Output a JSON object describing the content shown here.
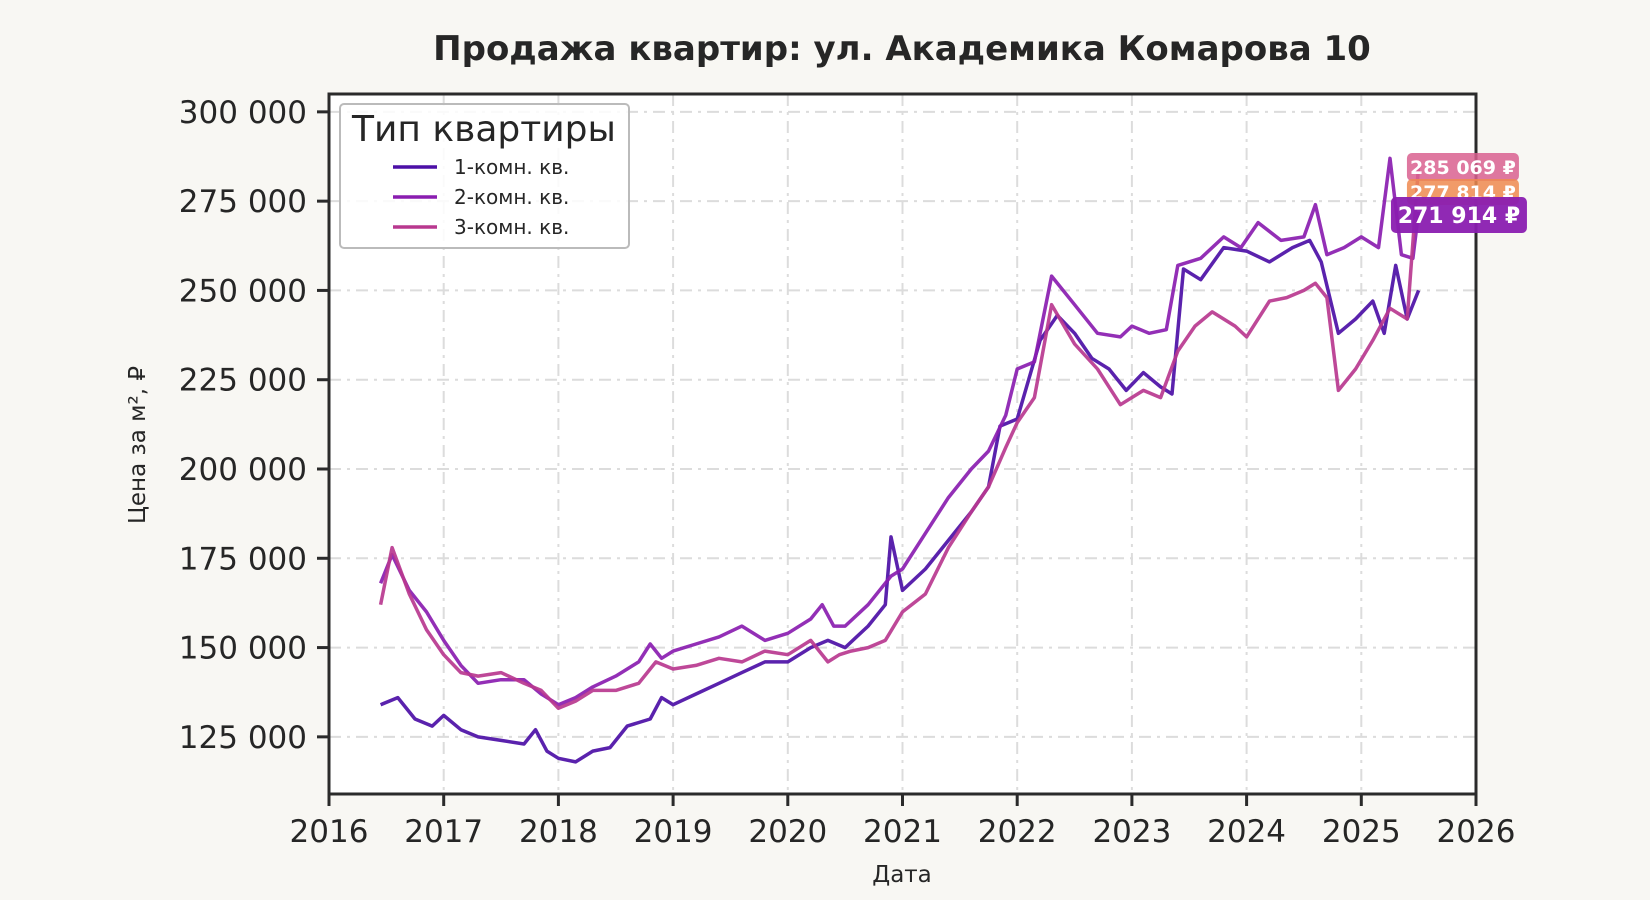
{
  "chart_data": {
    "type": "line",
    "title": "Продажа квартир: ул. Академика Комарова 10",
    "xlabel": "Дата",
    "ylabel": "Цена за м², ₽",
    "xlim": [
      2016.0,
      2026.0
    ],
    "ylim": [
      109000,
      305000
    ],
    "x_ticks": [
      "2016",
      "2017",
      "2018",
      "2019",
      "2020",
      "2021",
      "2022",
      "2023",
      "2024",
      "2025",
      "2026"
    ],
    "y_ticks": [
      "125 000",
      "150 000",
      "175 000",
      "200 000",
      "225 000",
      "250 000",
      "275 000",
      "300 000"
    ],
    "y_tick_values": [
      125000,
      150000,
      175000,
      200000,
      225000,
      250000,
      275000,
      300000
    ],
    "grid": true,
    "legend": {
      "title": "Тип квартиры",
      "position": "top-left"
    },
    "series": [
      {
        "name": "1-комн. кв.",
        "color": "#4c0fa6",
        "x": [
          2016.45,
          2016.6,
          2016.75,
          2016.9,
          2017.0,
          2017.15,
          2017.3,
          2017.5,
          2017.7,
          2017.8,
          2017.9,
          2018.0,
          2018.15,
          2018.3,
          2018.45,
          2018.6,
          2018.8,
          2018.9,
          2019.0,
          2019.2,
          2019.4,
          2019.6,
          2019.8,
          2020.0,
          2020.2,
          2020.35,
          2020.5,
          2020.7,
          2020.85,
          2020.9,
          2021.0,
          2021.2,
          2021.4,
          2021.6,
          2021.75,
          2021.85,
          2022.0,
          2022.2,
          2022.35,
          2022.5,
          2022.65,
          2022.8,
          2022.95,
          2023.1,
          2023.25,
          2023.35,
          2023.45,
          2023.6,
          2023.8,
          2024.0,
          2024.2,
          2024.4,
          2024.55,
          2024.65,
          2024.8,
          2024.95,
          2025.1,
          2025.2,
          2025.3,
          2025.4,
          2025.5
        ],
        "values": [
          134000,
          136000,
          130000,
          128000,
          131000,
          127000,
          125000,
          124000,
          123000,
          127000,
          121000,
          119000,
          118000,
          121000,
          122000,
          128000,
          130000,
          136000,
          134000,
          137000,
          140000,
          143000,
          146000,
          146000,
          150000,
          152000,
          150000,
          156000,
          162000,
          181000,
          166000,
          172000,
          180000,
          188000,
          195000,
          212000,
          214000,
          236000,
          243000,
          238000,
          231000,
          228000,
          222000,
          227000,
          223000,
          221000,
          256000,
          253000,
          262000,
          261000,
          258000,
          262000,
          264000,
          258000,
          238000,
          242000,
          247000,
          238000,
          257000,
          242000,
          250000
        ]
      },
      {
        "name": "2-комн. кв.",
        "color": "#8a1db0",
        "x": [
          2016.45,
          2016.55,
          2016.7,
          2016.85,
          2017.0,
          2017.15,
          2017.3,
          2017.5,
          2017.7,
          2017.85,
          2018.0,
          2018.15,
          2018.3,
          2018.5,
          2018.7,
          2018.8,
          2018.9,
          2019.0,
          2019.2,
          2019.4,
          2019.6,
          2019.8,
          2020.0,
          2020.2,
          2020.3,
          2020.4,
          2020.5,
          2020.7,
          2020.9,
          2021.0,
          2021.2,
          2021.4,
          2021.6,
          2021.75,
          2021.9,
          2022.0,
          2022.15,
          2022.3,
          2022.5,
          2022.7,
          2022.9,
          2023.0,
          2023.15,
          2023.3,
          2023.4,
          2023.6,
          2023.8,
          2023.95,
          2024.1,
          2024.3,
          2024.5,
          2024.6,
          2024.7,
          2024.85,
          2025.0,
          2025.15,
          2025.25,
          2025.35,
          2025.45,
          2025.5
        ],
        "values": [
          168000,
          176000,
          166000,
          160000,
          152000,
          145000,
          140000,
          141000,
          141000,
          137000,
          134000,
          136000,
          139000,
          142000,
          146000,
          151000,
          147000,
          149000,
          151000,
          153000,
          156000,
          152000,
          154000,
          158000,
          162000,
          156000,
          156000,
          162000,
          170000,
          172000,
          182000,
          192000,
          200000,
          205000,
          215000,
          228000,
          230000,
          254000,
          246000,
          238000,
          237000,
          240000,
          238000,
          239000,
          257000,
          259000,
          265000,
          262000,
          269000,
          264000,
          265000,
          274000,
          260000,
          262000,
          265000,
          262000,
          287000,
          260000,
          259000,
          272000
        ]
      },
      {
        "name": "3-комн. кв.",
        "color": "#b8388f",
        "x": [
          2016.45,
          2016.55,
          2016.7,
          2016.85,
          2017.0,
          2017.15,
          2017.3,
          2017.5,
          2017.7,
          2017.85,
          2018.0,
          2018.15,
          2018.3,
          2018.5,
          2018.7,
          2018.85,
          2019.0,
          2019.2,
          2019.4,
          2019.6,
          2019.8,
          2020.0,
          2020.2,
          2020.35,
          2020.45,
          2020.55,
          2020.7,
          2020.85,
          2021.0,
          2021.2,
          2021.4,
          2021.6,
          2021.75,
          2021.9,
          2022.0,
          2022.15,
          2022.3,
          2022.5,
          2022.7,
          2022.9,
          2023.1,
          2023.25,
          2023.4,
          2023.55,
          2023.7,
          2023.9,
          2024.0,
          2024.2,
          2024.35,
          2024.5,
          2024.6,
          2024.7,
          2024.8,
          2024.95,
          2025.1,
          2025.25,
          2025.4,
          2025.5
        ],
        "values": [
          162000,
          178000,
          165000,
          155000,
          148000,
          143000,
          142000,
          143000,
          140000,
          138000,
          133000,
          135000,
          138000,
          138000,
          140000,
          146000,
          144000,
          145000,
          147000,
          146000,
          149000,
          148000,
          152000,
          146000,
          148000,
          149000,
          150000,
          152000,
          160000,
          165000,
          178000,
          188000,
          195000,
          206000,
          213000,
          220000,
          246000,
          235000,
          228000,
          218000,
          222000,
          220000,
          233000,
          240000,
          244000,
          240000,
          237000,
          247000,
          248000,
          250000,
          252000,
          248000,
          222000,
          228000,
          236000,
          245000,
          242000,
          285000
        ]
      }
    ],
    "badges": [
      {
        "text": "285 069 ₽",
        "color": "#d9608f",
        "value": 285069
      },
      {
        "text": "277 814 ₽",
        "color": "#ef8a4f",
        "value": 277814
      },
      {
        "text": "271 914 ₽",
        "color": "#8a1db0",
        "value": 271914
      }
    ]
  }
}
